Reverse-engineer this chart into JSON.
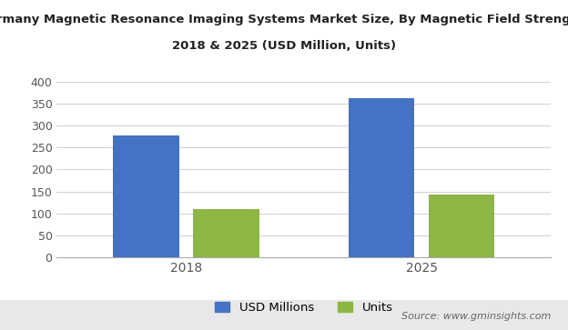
{
  "title_line1": "Germany Magnetic Resonance Imaging Systems Market Size, By Magnetic Field Strength,",
  "title_line2": "2018 & 2025 (USD Million, Units)",
  "categories": [
    "2018",
    "2025"
  ],
  "usd_millions": [
    278,
    362
  ],
  "units": [
    110,
    143
  ],
  "bar_color_blue": "#4472C4",
  "bar_color_green": "#8DB645",
  "ylim": [
    0,
    420
  ],
  "yticks": [
    0,
    50,
    100,
    150,
    200,
    250,
    300,
    350,
    400
  ],
  "legend_labels": [
    "USD Millions",
    "Units"
  ],
  "source_text": "Source: www.gminsights.com",
  "background_color": "#ffffff",
  "footer_color": "#e8e8e8",
  "bar_width": 0.28,
  "bar_gap": 0.06
}
